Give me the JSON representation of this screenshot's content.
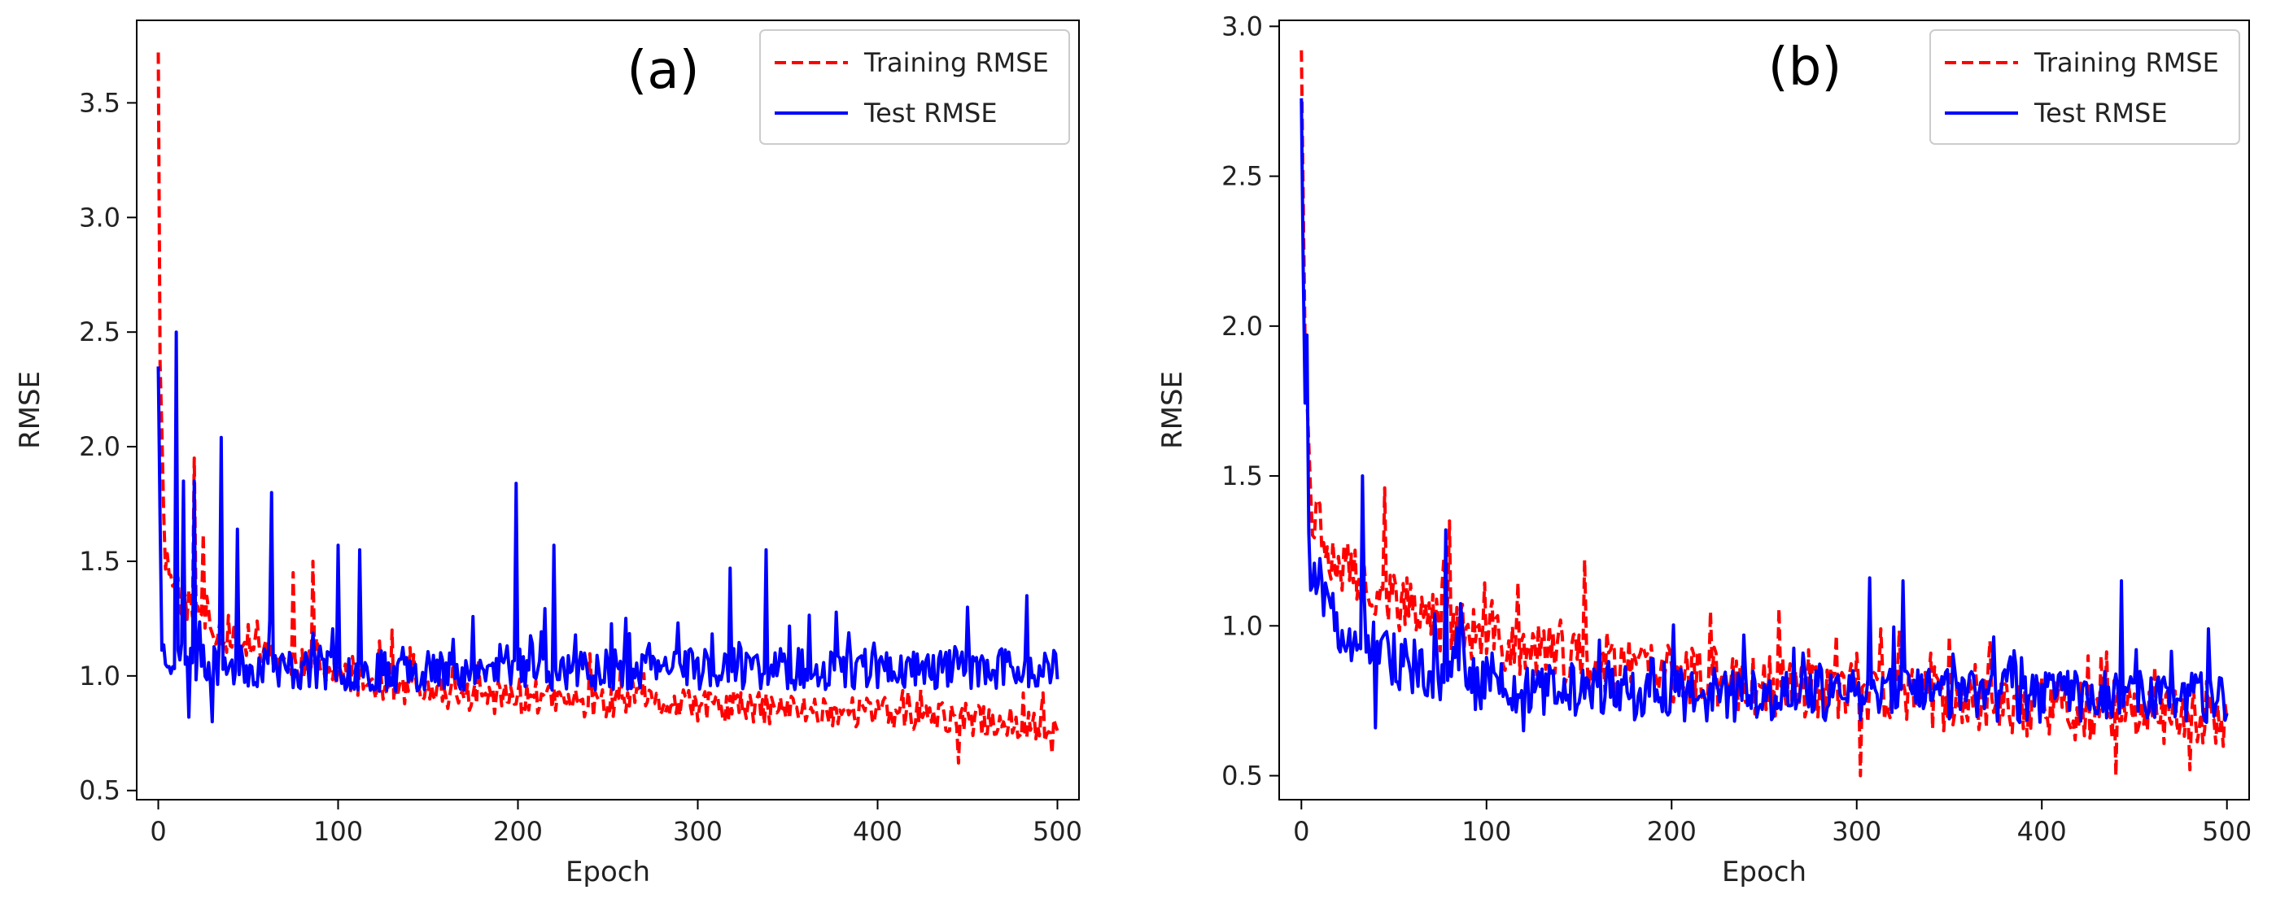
{
  "chart_data": [
    {
      "type": "line",
      "panel_label": "(a)",
      "xlabel": "Epoch",
      "ylabel": "RMSE",
      "xlim": [
        -12,
        512
      ],
      "ylim": [
        0.46,
        3.86
      ],
      "xticks": [
        0,
        100,
        200,
        300,
        400,
        500
      ],
      "yticks": [
        0.5,
        1.0,
        1.5,
        2.0,
        2.5,
        3.0,
        3.5
      ],
      "xtick_labels": [
        "0",
        "100",
        "200",
        "300",
        "400",
        "500"
      ],
      "ytick_labels": [
        "0.5",
        "1.0",
        "1.5",
        "2.0",
        "2.5",
        "3.0",
        "3.5"
      ],
      "grid": false,
      "legend_position": "top-right",
      "n_points": 501,
      "series": [
        {
          "name": "Training RMSE",
          "color": "#ff0000",
          "style": "dashed",
          "seed": 11,
          "start": 3.72,
          "decay": [
            {
              "x": 0,
              "y": 3.72
            },
            {
              "x": 1,
              "y": 2.4
            },
            {
              "x": 3,
              "y": 1.55
            },
            {
              "x": 10,
              "y": 1.35
            },
            {
              "x": 40,
              "y": 1.15
            },
            {
              "x": 100,
              "y": 1.0
            },
            {
              "x": 150,
              "y": 0.92
            },
            {
              "x": 250,
              "y": 0.88
            },
            {
              "x": 400,
              "y": 0.84
            },
            {
              "x": 500,
              "y": 0.78
            }
          ],
          "noise": 0.07,
          "spikes": [
            {
              "x": 20,
              "y": 1.95
            },
            {
              "x": 25,
              "y": 1.62
            },
            {
              "x": 75,
              "y": 1.45
            },
            {
              "x": 86,
              "y": 1.5
            },
            {
              "x": 130,
              "y": 1.2
            },
            {
              "x": 445,
              "y": 0.62
            },
            {
              "x": 497,
              "y": 0.66
            }
          ]
        },
        {
          "name": "Test RMSE",
          "color": "#0000ff",
          "style": "solid",
          "seed": 23,
          "start": 2.35,
          "decay": [
            {
              "x": 0,
              "y": 2.35
            },
            {
              "x": 2,
              "y": 1.1
            },
            {
              "x": 20,
              "y": 1.05
            },
            {
              "x": 100,
              "y": 1.02
            },
            {
              "x": 300,
              "y": 1.03
            },
            {
              "x": 500,
              "y": 1.03
            }
          ],
          "noise": 0.09,
          "spikes": [
            {
              "x": 10,
              "y": 2.5
            },
            {
              "x": 14,
              "y": 1.85
            },
            {
              "x": 20,
              "y": 1.85
            },
            {
              "x": 35,
              "y": 2.04
            },
            {
              "x": 44,
              "y": 1.64
            },
            {
              "x": 63,
              "y": 1.8
            },
            {
              "x": 100,
              "y": 1.57
            },
            {
              "x": 112,
              "y": 1.55
            },
            {
              "x": 199,
              "y": 1.84
            },
            {
              "x": 220,
              "y": 1.57
            },
            {
              "x": 318,
              "y": 1.47
            },
            {
              "x": 338,
              "y": 1.55
            },
            {
              "x": 450,
              "y": 1.3
            },
            {
              "x": 483,
              "y": 1.35
            },
            {
              "x": 30,
              "y": 0.8
            },
            {
              "x": 17,
              "y": 0.82
            }
          ]
        }
      ]
    },
    {
      "type": "line",
      "panel_label": "(b)",
      "xlabel": "Epoch",
      "ylabel": "RMSE",
      "xlim": [
        -12,
        512
      ],
      "ylim": [
        0.42,
        3.02
      ],
      "xticks": [
        0,
        100,
        200,
        300,
        400,
        500
      ],
      "yticks": [
        0.5,
        1.0,
        1.5,
        2.0,
        2.5,
        3.0
      ],
      "xtick_labels": [
        "0",
        "100",
        "200",
        "300",
        "400",
        "500"
      ],
      "ytick_labels": [
        "0.5",
        "1.0",
        "1.5",
        "2.0",
        "2.5",
        "3.0"
      ],
      "grid": false,
      "legend_position": "top-right",
      "n_points": 501,
      "series": [
        {
          "name": "Training RMSE",
          "color": "#ff0000",
          "style": "dashed",
          "seed": 37,
          "start": 2.92,
          "decay": [
            {
              "x": 0,
              "y": 2.92
            },
            {
              "x": 2,
              "y": 2.0
            },
            {
              "x": 5,
              "y": 1.4
            },
            {
              "x": 20,
              "y": 1.2
            },
            {
              "x": 60,
              "y": 1.05
            },
            {
              "x": 100,
              "y": 0.95
            },
            {
              "x": 150,
              "y": 0.88
            },
            {
              "x": 250,
              "y": 0.8
            },
            {
              "x": 400,
              "y": 0.72
            },
            {
              "x": 500,
              "y": 0.68
            }
          ],
          "noise": 0.1,
          "spikes": [
            {
              "x": 45,
              "y": 1.46
            },
            {
              "x": 80,
              "y": 1.35
            },
            {
              "x": 153,
              "y": 1.22
            },
            {
              "x": 302,
              "y": 0.5
            },
            {
              "x": 440,
              "y": 0.5
            },
            {
              "x": 480,
              "y": 0.52
            }
          ]
        },
        {
          "name": "Test RMSE",
          "color": "#0000ff",
          "style": "solid",
          "seed": 51,
          "start": 2.76,
          "decay": [
            {
              "x": 0,
              "y": 2.76
            },
            {
              "x": 2,
              "y": 1.7
            },
            {
              "x": 5,
              "y": 1.15
            },
            {
              "x": 20,
              "y": 1.0
            },
            {
              "x": 50,
              "y": 0.88
            },
            {
              "x": 100,
              "y": 0.8
            },
            {
              "x": 200,
              "y": 0.77
            },
            {
              "x": 500,
              "y": 0.76
            }
          ],
          "noise": 0.09,
          "spikes": [
            {
              "x": 3,
              "y": 1.97
            },
            {
              "x": 33,
              "y": 1.5
            },
            {
              "x": 78,
              "y": 1.32
            },
            {
              "x": 307,
              "y": 1.16
            },
            {
              "x": 325,
              "y": 1.15
            },
            {
              "x": 443,
              "y": 1.15
            },
            {
              "x": 490,
              "y": 0.99
            },
            {
              "x": 40,
              "y": 0.66
            },
            {
              "x": 120,
              "y": 0.65
            }
          ]
        }
      ]
    }
  ]
}
